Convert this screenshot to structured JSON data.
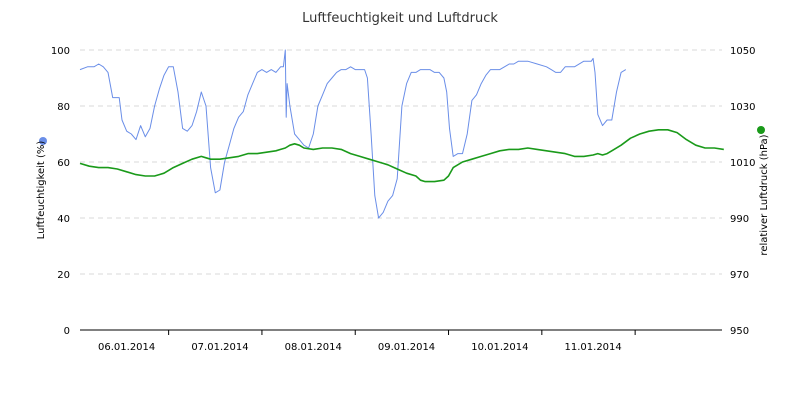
{
  "chart_data": {
    "type": "line",
    "title": "Luftfeuchtigkeit und Luftdruck",
    "x_labels": [
      "06.01.2014",
      "07.01.2014",
      "08.01.2014",
      "09.01.2014",
      "10.01.2014",
      "11.01.2014"
    ],
    "y_left": {
      "label": "Luftfeuchtigkeit (%)",
      "min": 0,
      "max": 100,
      "ticks": [
        "0",
        "20",
        "40",
        "60",
        "80",
        "100"
      ],
      "color": "#6a8ee8"
    },
    "y_right": {
      "label": "relativer Luftdruck (hPa)",
      "min": 950,
      "max": 1050,
      "ticks": [
        "950",
        "970",
        "990",
        "1010",
        "1030",
        "1050"
      ],
      "color": "#1a9a1a"
    },
    "grid": true,
    "series": [
      {
        "axis": "left",
        "color": "#6a8ee8",
        "points": [
          [
            0.0,
            93
          ],
          [
            0.08,
            94
          ],
          [
            0.15,
            94
          ],
          [
            0.2,
            95
          ],
          [
            0.25,
            94
          ],
          [
            0.3,
            92
          ],
          [
            0.35,
            83
          ],
          [
            0.42,
            83
          ],
          [
            0.45,
            75
          ],
          [
            0.5,
            71
          ],
          [
            0.55,
            70
          ],
          [
            0.6,
            68
          ],
          [
            0.65,
            73
          ],
          [
            0.7,
            69
          ],
          [
            0.75,
            72
          ],
          [
            0.8,
            80
          ],
          [
            0.85,
            86
          ],
          [
            0.9,
            91
          ],
          [
            0.95,
            94
          ],
          [
            1.0,
            94
          ],
          [
            1.05,
            85
          ],
          [
            1.1,
            72
          ],
          [
            1.15,
            71
          ],
          [
            1.2,
            73
          ],
          [
            1.25,
            78
          ],
          [
            1.3,
            85
          ],
          [
            1.35,
            80
          ],
          [
            1.4,
            58
          ],
          [
            1.45,
            49
          ],
          [
            1.5,
            50
          ],
          [
            1.55,
            60
          ],
          [
            1.6,
            66
          ],
          [
            1.65,
            72
          ],
          [
            1.7,
            76
          ],
          [
            1.75,
            78
          ],
          [
            1.8,
            84
          ],
          [
            1.85,
            88
          ],
          [
            1.9,
            92
          ],
          [
            1.95,
            93
          ],
          [
            2.0,
            92
          ],
          [
            2.05,
            93
          ],
          [
            2.1,
            92
          ],
          [
            2.15,
            94
          ],
          [
            2.18,
            94
          ],
          [
            2.2,
            100
          ],
          [
            2.21,
            76
          ],
          [
            2.22,
            88
          ],
          [
            2.25,
            80
          ],
          [
            2.3,
            70
          ],
          [
            2.35,
            68
          ],
          [
            2.4,
            66
          ],
          [
            2.45,
            65
          ],
          [
            2.5,
            70
          ],
          [
            2.55,
            80
          ],
          [
            2.6,
            84
          ],
          [
            2.65,
            88
          ],
          [
            2.7,
            90
          ],
          [
            2.75,
            92
          ],
          [
            2.8,
            93
          ],
          [
            2.85,
            93
          ],
          [
            2.9,
            94
          ],
          [
            2.95,
            93
          ],
          [
            3.0,
            93
          ],
          [
            3.05,
            93
          ],
          [
            3.08,
            90
          ],
          [
            3.12,
            70
          ],
          [
            3.16,
            48
          ],
          [
            3.2,
            40
          ],
          [
            3.25,
            42
          ],
          [
            3.3,
            46
          ],
          [
            3.35,
            48
          ],
          [
            3.4,
            54
          ],
          [
            3.45,
            80
          ],
          [
            3.5,
            88
          ],
          [
            3.55,
            92
          ],
          [
            3.6,
            92
          ],
          [
            3.65,
            93
          ],
          [
            3.7,
            93
          ],
          [
            3.75,
            93
          ],
          [
            3.8,
            92
          ],
          [
            3.85,
            92
          ],
          [
            3.9,
            90
          ],
          [
            3.93,
            85
          ],
          [
            3.96,
            72
          ],
          [
            4.0,
            62
          ],
          [
            4.05,
            63
          ],
          [
            4.1,
            63
          ],
          [
            4.15,
            70
          ],
          [
            4.2,
            82
          ],
          [
            4.25,
            84
          ],
          [
            4.3,
            88
          ],
          [
            4.35,
            91
          ],
          [
            4.4,
            93
          ],
          [
            4.45,
            93
          ],
          [
            4.5,
            93
          ],
          [
            4.55,
            94
          ],
          [
            4.6,
            95
          ],
          [
            4.65,
            95
          ],
          [
            4.7,
            96
          ],
          [
            4.8,
            96
          ],
          [
            4.9,
            95
          ],
          [
            5.0,
            94
          ],
          [
            5.05,
            93
          ],
          [
            5.1,
            92
          ],
          [
            5.15,
            92
          ],
          [
            5.2,
            94
          ],
          [
            5.3,
            94
          ],
          [
            5.4,
            96
          ],
          [
            5.48,
            96
          ],
          [
            5.5,
            97
          ],
          [
            5.52,
            92
          ],
          [
            5.55,
            77
          ],
          [
            5.6,
            73
          ],
          [
            5.65,
            75
          ],
          [
            5.7,
            75
          ],
          [
            5.75,
            85
          ],
          [
            5.8,
            92
          ],
          [
            5.85,
            93
          ]
        ]
      },
      {
        "axis": "right",
        "color": "#1a9a1a",
        "points": [
          [
            0.0,
            1009.5
          ],
          [
            0.1,
            1008.5
          ],
          [
            0.2,
            1008
          ],
          [
            0.3,
            1008
          ],
          [
            0.4,
            1007.5
          ],
          [
            0.5,
            1006.5
          ],
          [
            0.6,
            1005.5
          ],
          [
            0.7,
            1005
          ],
          [
            0.8,
            1005
          ],
          [
            0.85,
            1005.5
          ],
          [
            0.9,
            1006
          ],
          [
            0.95,
            1007
          ],
          [
            1.0,
            1008
          ],
          [
            1.1,
            1009.5
          ],
          [
            1.2,
            1011
          ],
          [
            1.3,
            1012
          ],
          [
            1.35,
            1011.5
          ],
          [
            1.4,
            1011
          ],
          [
            1.5,
            1011
          ],
          [
            1.6,
            1011.5
          ],
          [
            1.7,
            1012
          ],
          [
            1.8,
            1013
          ],
          [
            1.9,
            1013
          ],
          [
            2.0,
            1013.5
          ],
          [
            2.1,
            1014
          ],
          [
            2.15,
            1014.5
          ],
          [
            2.2,
            1015
          ],
          [
            2.25,
            1016
          ],
          [
            2.3,
            1016.5
          ],
          [
            2.35,
            1016
          ],
          [
            2.4,
            1015
          ],
          [
            2.5,
            1014.5
          ],
          [
            2.6,
            1015
          ],
          [
            2.7,
            1015
          ],
          [
            2.8,
            1014.5
          ],
          [
            2.9,
            1013
          ],
          [
            3.0,
            1012
          ],
          [
            3.1,
            1011
          ],
          [
            3.2,
            1010
          ],
          [
            3.3,
            1009
          ],
          [
            3.4,
            1007.5
          ],
          [
            3.5,
            1006
          ],
          [
            3.6,
            1005
          ],
          [
            3.65,
            1003.5
          ],
          [
            3.7,
            1003
          ],
          [
            3.8,
            1003
          ],
          [
            3.9,
            1003.5
          ],
          [
            3.95,
            1005
          ],
          [
            4.0,
            1008
          ],
          [
            4.1,
            1010
          ],
          [
            4.2,
            1011
          ],
          [
            4.3,
            1012
          ],
          [
            4.4,
            1013
          ],
          [
            4.5,
            1014
          ],
          [
            4.6,
            1014.5
          ],
          [
            4.7,
            1014.5
          ],
          [
            4.8,
            1015
          ],
          [
            4.9,
            1014.5
          ],
          [
            5.0,
            1014
          ],
          [
            5.1,
            1013.5
          ],
          [
            5.2,
            1013
          ],
          [
            5.3,
            1012
          ],
          [
            5.4,
            1012
          ],
          [
            5.5,
            1012.5
          ],
          [
            5.55,
            1013
          ],
          [
            5.6,
            1012.5
          ],
          [
            5.65,
            1013
          ],
          [
            5.7,
            1014
          ],
          [
            5.8,
            1016
          ],
          [
            5.9,
            1018.5
          ],
          [
            6.0,
            1020
          ],
          [
            6.1,
            1021
          ],
          [
            6.2,
            1021.5
          ],
          [
            6.3,
            1021.5
          ],
          [
            6.4,
            1020.5
          ],
          [
            6.5,
            1018
          ],
          [
            6.6,
            1016
          ],
          [
            6.7,
            1015
          ],
          [
            6.8,
            1015
          ],
          [
            6.9,
            1014.5
          ]
        ]
      }
    ]
  }
}
